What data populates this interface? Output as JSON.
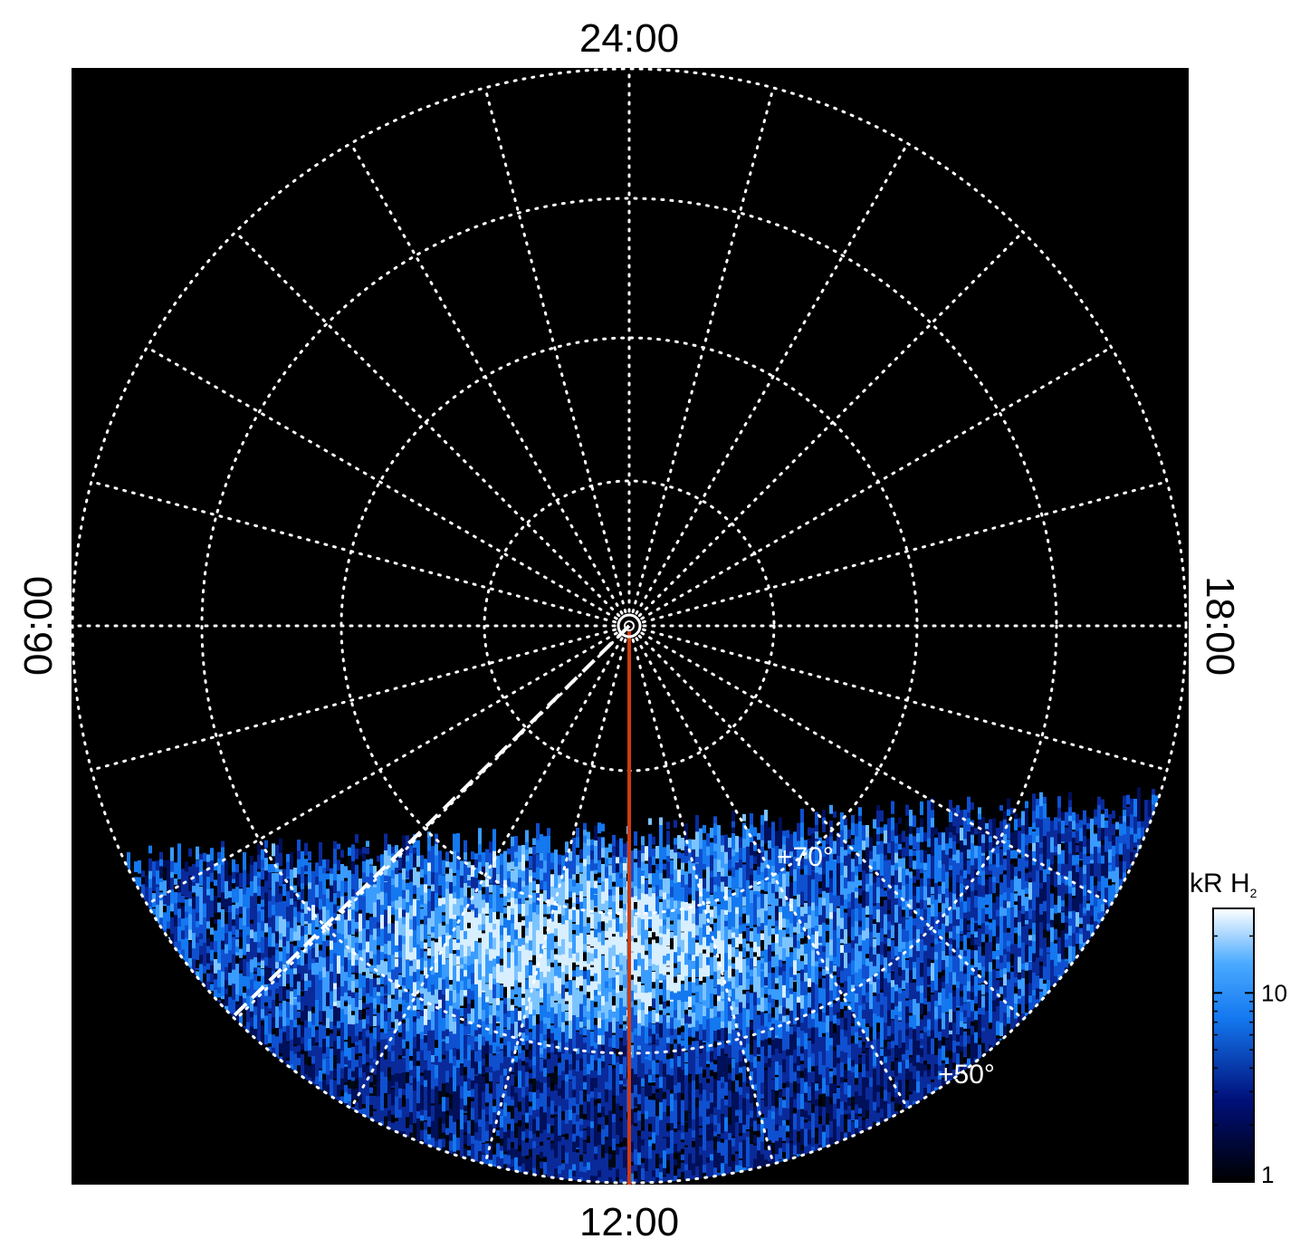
{
  "map": {
    "hour_labels": {
      "top": "24:00",
      "left": "06:00",
      "right": "18:00",
      "bottom": "12:00"
    },
    "latitude_labels": [
      "+70°",
      "+50°"
    ],
    "colorbar": {
      "label": "kR H",
      "label_subscript": "2",
      "scale": "log",
      "lim": [
        1,
        28
      ],
      "ticks": [
        1,
        10
      ]
    }
  }
}
